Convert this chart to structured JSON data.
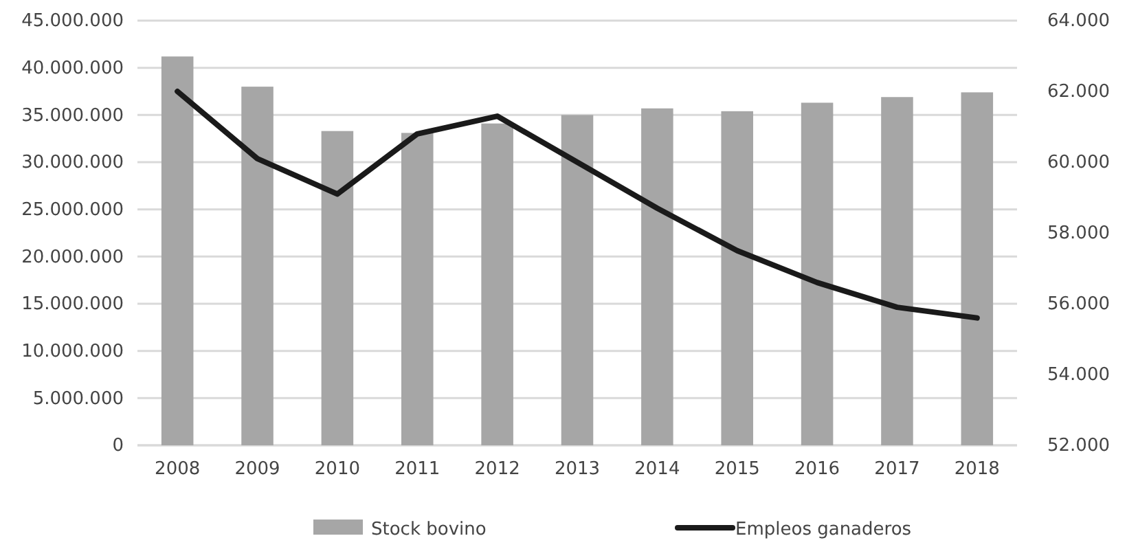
{
  "chart_data": {
    "type": "bar",
    "categories": [
      "2008",
      "2009",
      "2010",
      "2011",
      "2012",
      "2013",
      "2014",
      "2015",
      "2016",
      "2017",
      "2018"
    ],
    "series": [
      {
        "name": "Stock bovino",
        "color": "#a6a6a6",
        "values": [
          41200000,
          38000000,
          33300000,
          33100000,
          34100000,
          35000000,
          35700000,
          35400000,
          36300000,
          36900000,
          37400000
        ]
      },
      {
        "name": "Empleos ganaderos",
        "type": "line",
        "axis": "y2",
        "color": "#1a1a1a",
        "values": [
          62000,
          60100,
          59100,
          60800,
          61300,
          60000,
          58700,
          57500,
          56600,
          55900,
          55600
        ]
      }
    ],
    "ylim": [
      0,
      45000000
    ],
    "yticks": [
      {
        "value": 0,
        "label": "0"
      },
      {
        "value": 5000000,
        "label": "5.000.000"
      },
      {
        "value": 10000000,
        "label": "10.000.000"
      },
      {
        "value": 15000000,
        "label": "15.000.000"
      },
      {
        "value": 20000000,
        "label": "20.000.000"
      },
      {
        "value": 25000000,
        "label": "25.000.000"
      },
      {
        "value": 30000000,
        "label": "30.000.000"
      },
      {
        "value": 35000000,
        "label": "35.000.000"
      },
      {
        "value": 40000000,
        "label": "40.000.000"
      },
      {
        "value": 45000000,
        "label": "45.000.000"
      }
    ],
    "y2lim": [
      52000,
      64000
    ],
    "y2ticks": [
      {
        "value": 52000,
        "label": "52.000"
      },
      {
        "value": 54000,
        "label": "54.000"
      },
      {
        "value": 56000,
        "label": "56.000"
      },
      {
        "value": 58000,
        "label": "58.000"
      },
      {
        "value": 60000,
        "label": "60.000"
      },
      {
        "value": 62000,
        "label": "62.000"
      },
      {
        "value": 64000,
        "label": "64.000"
      }
    ],
    "grid": "y",
    "legend": "bottom",
    "marker": "none",
    "line_style": "solid"
  }
}
